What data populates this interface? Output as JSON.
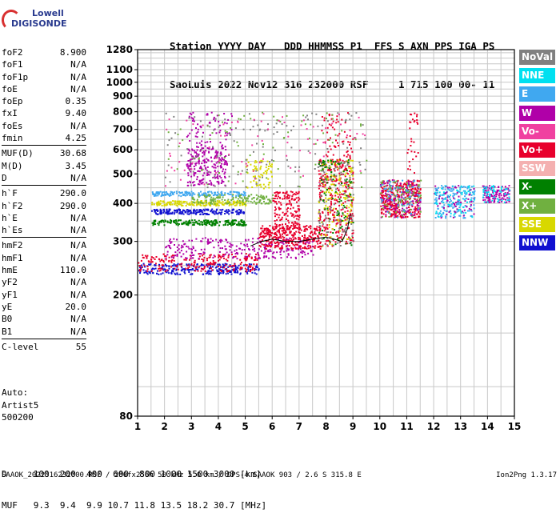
{
  "logo": {
    "line1": "Lowell",
    "line2": "DIGISONDE"
  },
  "header": {
    "labels": "Station YYYY DAY   DDD HHMMSS P1  FFS S AXN PPS IGA PS",
    "values": "SaoLuis 2022 Nov12 316 232000 RSF     1 715 100 00- 11"
  },
  "params": [
    {
      "name": "foF2",
      "value": "8.900"
    },
    {
      "name": "foF1",
      "value": "N/A"
    },
    {
      "name": "foF1p",
      "value": "N/A"
    },
    {
      "name": "foE",
      "value": "N/A"
    },
    {
      "name": "foEp",
      "value": "0.35"
    },
    {
      "name": "fxI",
      "value": "9.40"
    },
    {
      "name": "foEs",
      "value": "N/A"
    },
    {
      "name": "fmin",
      "value": "4.25"
    },
    {
      "name": "---"
    },
    {
      "name": "MUF(D)",
      "value": "30.68"
    },
    {
      "name": "M(D)",
      "value": "3.45"
    },
    {
      "name": "D",
      "value": "N/A"
    },
    {
      "name": "---"
    },
    {
      "name": "h`F",
      "value": "290.0"
    },
    {
      "name": "h`F2",
      "value": "290.0"
    },
    {
      "name": "h`E",
      "value": "N/A"
    },
    {
      "name": "h`Es",
      "value": "N/A"
    },
    {
      "name": "---"
    },
    {
      "name": "hmF2",
      "value": "N/A"
    },
    {
      "name": "hmF1",
      "value": "N/A"
    },
    {
      "name": "hmE",
      "value": "110.0"
    },
    {
      "name": "yF2",
      "value": "N/A"
    },
    {
      "name": "yF1",
      "value": "N/A"
    },
    {
      "name": "yE",
      "value": "20.0"
    },
    {
      "name": "B0",
      "value": "N/A"
    },
    {
      "name": "B1",
      "value": "N/A"
    },
    {
      "name": "---"
    },
    {
      "name": "C-level",
      "value": "55"
    }
  ],
  "auto": {
    "line1": "Auto:",
    "line2": "Artist5",
    "line3": "500200"
  },
  "legend": [
    {
      "label": "NoVal",
      "color": "#808080"
    },
    {
      "label": "NNE",
      "color": "#00e0f0"
    },
    {
      "label": "E",
      "color": "#40a8f0"
    },
    {
      "label": "W",
      "color": "#b000a8"
    },
    {
      "label": "Vo-",
      "color": "#f040a0"
    },
    {
      "label": "Vo+",
      "color": "#e8002c"
    },
    {
      "label": "SSW",
      "color": "#f4b0b0"
    },
    {
      "label": "X-",
      "color": "#008000"
    },
    {
      "label": "X+",
      "color": "#70b040"
    },
    {
      "label": "SSE",
      "color": "#d8d800"
    },
    {
      "label": "NNW",
      "color": "#1010d0"
    }
  ],
  "muf_table": {
    "d_row": "D     100  200  400  600  800 1000 1500 3000 [km]",
    "muf_row": "MUF   9.3  9.4  9.9 10.7 11.8 13.5 18.2 30.7 [MHz]"
  },
  "footer": {
    "left": "SAAOK_2022316232000.RSF / 280fx256h 50 kHz 5.0 km / DPS-4 SAAOK 903 / 2.6 S 315.8 E",
    "right": "Ion2Png 1.3.17"
  },
  "chart_data": {
    "type": "scatter",
    "xlim": [
      1,
      15
    ],
    "ylim": [
      80,
      1280
    ],
    "y_scale": "log",
    "xticks": [
      1,
      2,
      3,
      4,
      5,
      6,
      7,
      8,
      9,
      10,
      11,
      12,
      13,
      14,
      15
    ],
    "yticks": [
      80,
      200,
      300,
      400,
      500,
      600,
      700,
      800,
      900,
      1000,
      1100,
      1280
    ],
    "grid": true,
    "trace_points": [
      {
        "x": 5.2,
        "y": 290
      },
      {
        "x": 5.6,
        "y": 300
      },
      {
        "x": 6.0,
        "y": 305
      },
      {
        "x": 6.5,
        "y": 300
      },
      {
        "x": 7.0,
        "y": 300
      },
      {
        "x": 7.5,
        "y": 305
      },
      {
        "x": 8.0,
        "y": 310
      },
      {
        "x": 8.3,
        "y": 305
      },
      {
        "x": 8.6,
        "y": 300
      },
      {
        "x": 8.8,
        "y": 330
      },
      {
        "x": 8.9,
        "y": 370
      }
    ],
    "clusters": [
      {
        "x0": 1.0,
        "x1": 5.5,
        "y0": 235,
        "y1": 255,
        "color": "#1010d0",
        "n": 260
      },
      {
        "x0": 1.0,
        "x1": 5.5,
        "y0": 240,
        "y1": 275,
        "color": "#e8002c",
        "n": 220
      },
      {
        "x0": 2.0,
        "x1": 7.5,
        "y0": 265,
        "y1": 310,
        "color": "#b000a8",
        "n": 260
      },
      {
        "x0": 5.5,
        "x1": 7.8,
        "y0": 285,
        "y1": 340,
        "color": "#e8002c",
        "n": 320
      },
      {
        "x0": 6.0,
        "x1": 7.0,
        "y0": 330,
        "y1": 440,
        "color": "#e8002c",
        "n": 160
      },
      {
        "x0": 1.5,
        "x1": 5.0,
        "y0": 340,
        "y1": 355,
        "color": "#008000",
        "n": 200
      },
      {
        "x0": 1.5,
        "x1": 5.0,
        "y0": 370,
        "y1": 385,
        "color": "#1010d0",
        "n": 200
      },
      {
        "x0": 1.5,
        "x1": 5.0,
        "y0": 395,
        "y1": 410,
        "color": "#d8d800",
        "n": 200
      },
      {
        "x0": 1.5,
        "x1": 5.0,
        "y0": 425,
        "y1": 440,
        "color": "#40a8f0",
        "n": 160
      },
      {
        "x0": 3.0,
        "x1": 6.0,
        "y0": 400,
        "y1": 430,
        "color": "#70b040",
        "n": 140
      },
      {
        "x0": 2.8,
        "x1": 4.3,
        "y0": 460,
        "y1": 620,
        "color": "#b000a8",
        "n": 220
      },
      {
        "x0": 2.8,
        "x1": 4.5,
        "y0": 620,
        "y1": 800,
        "color": "#b000a8",
        "n": 70
      },
      {
        "x0": 5.0,
        "x1": 6.0,
        "y0": 450,
        "y1": 560,
        "color": "#d8d800",
        "n": 70
      },
      {
        "x0": 7.7,
        "x1": 9.0,
        "y0": 290,
        "y1": 560,
        "color": "#e8002c",
        "n": 320
      },
      {
        "x0": 7.7,
        "x1": 9.0,
        "y0": 290,
        "y1": 560,
        "color": "#d8d800",
        "n": 140
      },
      {
        "x0": 7.7,
        "x1": 9.0,
        "y0": 290,
        "y1": 560,
        "color": "#808080",
        "n": 100
      },
      {
        "x0": 7.7,
        "x1": 9.0,
        "y0": 290,
        "y1": 560,
        "color": "#008000",
        "n": 90
      },
      {
        "x0": 7.8,
        "x1": 9.0,
        "y0": 560,
        "y1": 800,
        "color": "#e8002c",
        "n": 60
      },
      {
        "x0": 10.0,
        "x1": 11.5,
        "y0": 360,
        "y1": 480,
        "color": "#e8002c",
        "n": 360
      },
      {
        "x0": 10.0,
        "x1": 11.5,
        "y0": 360,
        "y1": 480,
        "color": "#b000a8",
        "n": 120
      },
      {
        "x0": 10.0,
        "x1": 11.5,
        "y0": 360,
        "y1": 480,
        "color": "#70b040",
        "n": 80
      },
      {
        "x0": 10.0,
        "x1": 11.5,
        "y0": 360,
        "y1": 480,
        "color": "#40a8f0",
        "n": 60
      },
      {
        "x0": 11.0,
        "x1": 11.4,
        "y0": 500,
        "y1": 800,
        "color": "#e8002c",
        "n": 30
      },
      {
        "x0": 12.0,
        "x1": 13.5,
        "y0": 360,
        "y1": 460,
        "color": "#40a8f0",
        "n": 160
      },
      {
        "x0": 12.0,
        "x1": 13.5,
        "y0": 360,
        "y1": 460,
        "color": "#b000a8",
        "n": 60
      },
      {
        "x0": 12.0,
        "x1": 13.5,
        "y0": 360,
        "y1": 460,
        "color": "#00e0f0",
        "n": 60
      },
      {
        "x0": 13.8,
        "x1": 14.8,
        "y0": 405,
        "y1": 460,
        "color": "#b000a8",
        "n": 120
      },
      {
        "x0": 13.8,
        "x1": 14.8,
        "y0": 405,
        "y1": 460,
        "color": "#00e0f0",
        "n": 50
      },
      {
        "x0": 2.0,
        "x1": 9.5,
        "y0": 450,
        "y1": 800,
        "color": "#808080",
        "n": 120
      },
      {
        "x0": 2.0,
        "x1": 9.5,
        "y0": 450,
        "y1": 800,
        "color": "#70b040",
        "n": 80
      },
      {
        "x0": 2.0,
        "x1": 9.5,
        "y0": 450,
        "y1": 800,
        "color": "#f040a0",
        "n": 80
      }
    ]
  }
}
